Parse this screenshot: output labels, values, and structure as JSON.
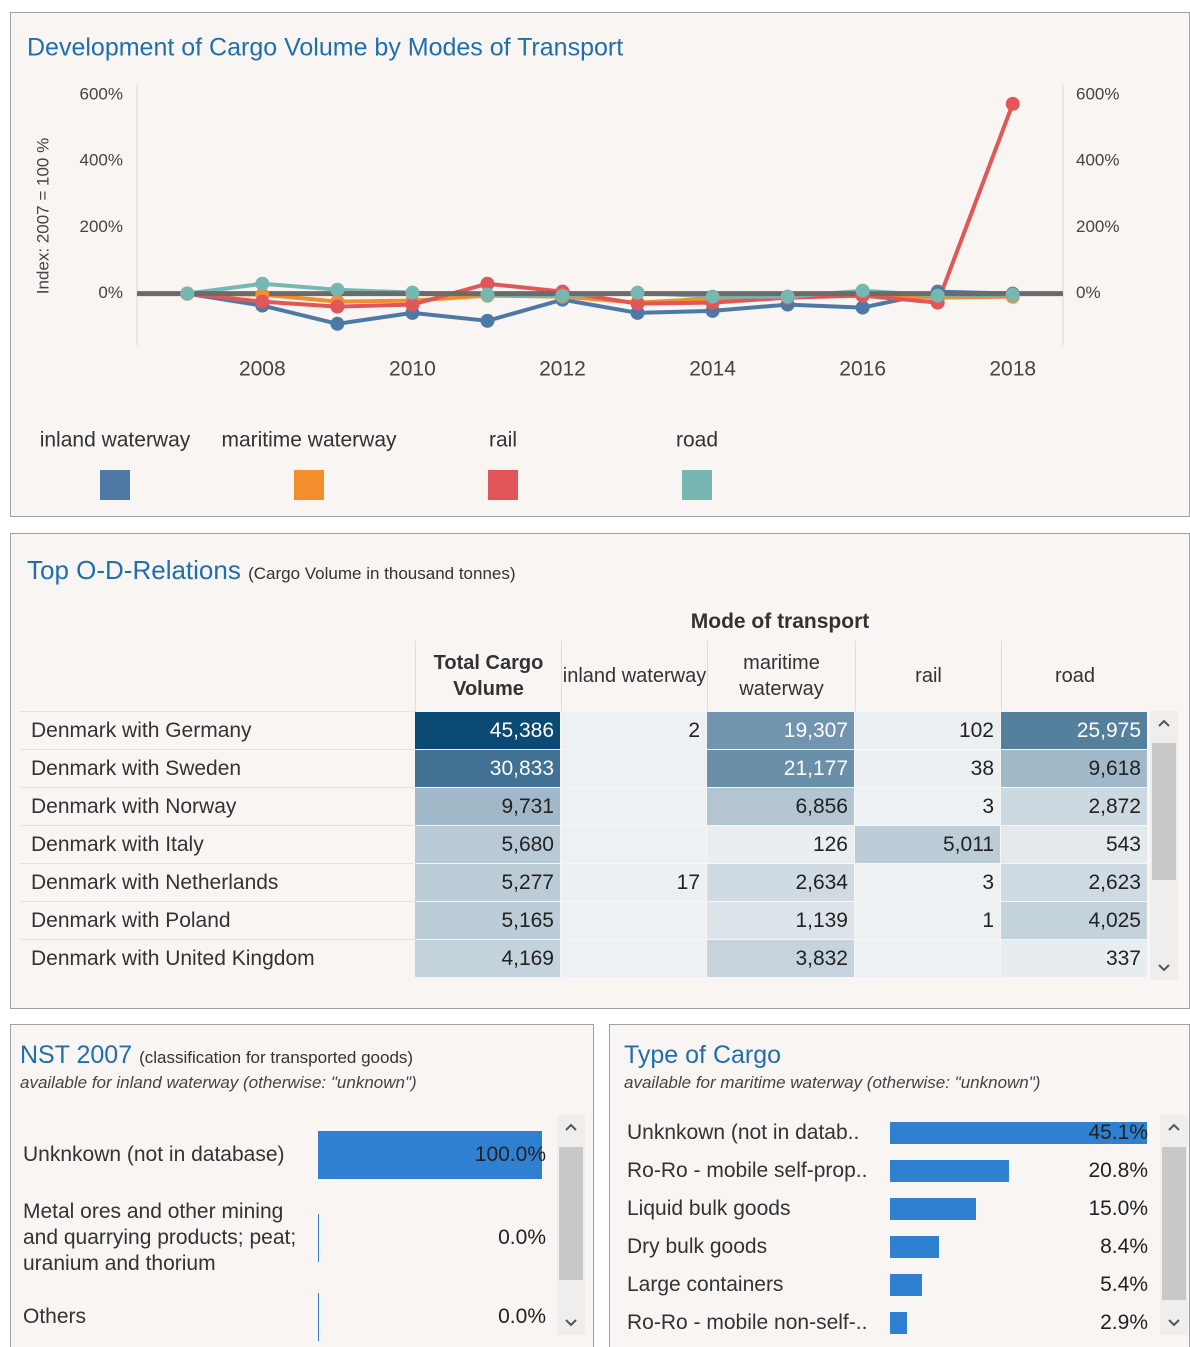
{
  "chart_data": [
    {
      "type": "line",
      "title": "Development of Cargo Volume by Modes of Transport",
      "y_label": "Index: 2007 = 100 %",
      "x": [
        2007,
        2008,
        2009,
        2010,
        2011,
        2012,
        2013,
        2014,
        2015,
        2016,
        2017,
        2018
      ],
      "xlim": [
        2006.33,
        2018.67
      ],
      "xticks": [
        2008,
        2010,
        2012,
        2014,
        2016,
        2018
      ],
      "ylim": [
        -155,
        630
      ],
      "yticks": [
        {
          "value": 0,
          "label": "0%"
        },
        {
          "value": 200,
          "label": "200%"
        },
        {
          "value": 400,
          "label": "400%"
        },
        {
          "value": 600,
          "label": "600%"
        }
      ],
      "y2lim": [
        -155,
        630
      ],
      "y2ticks": [
        {
          "value": 0,
          "label": "0%"
        },
        {
          "value": 200,
          "label": "200%"
        },
        {
          "value": 400,
          "label": "400%"
        },
        {
          "value": 600,
          "label": "600%"
        }
      ],
      "reference_line": 0,
      "grid": false,
      "legend": "bottom",
      "series": [
        {
          "name": "inland waterway",
          "color": "#4e79a7",
          "values": [
            0,
            -36,
            -91,
            -58,
            -82,
            -18,
            -58,
            -52,
            -33,
            -42,
            6,
            0
          ]
        },
        {
          "name": "maritime waterway",
          "color": "#f28e2b",
          "values": [
            0,
            -3,
            -24,
            -21,
            -6,
            -9,
            -27,
            -15,
            -9,
            -6,
            -12,
            -9
          ]
        },
        {
          "name": "rail",
          "color": "#e15759",
          "values": [
            0,
            -24,
            -39,
            -33,
            30,
            6,
            -30,
            -27,
            -12,
            -6,
            -27,
            573
          ]
        },
        {
          "name": "road",
          "color": "#76b7b2",
          "values": [
            0,
            30,
            12,
            3,
            -3,
            -6,
            3,
            -9,
            -9,
            9,
            -6,
            -3
          ]
        }
      ]
    },
    {
      "type": "hbar",
      "title": "NST 2007",
      "subtitle": "(classification for transported goods)",
      "note": "available for inland waterway (otherwise: \"unknown\")",
      "categories": [
        "Unknkown (not in database)",
        "Metal ores and other mining and quarrying products; peat; uranium and thorium",
        "Others"
      ],
      "values": [
        100,
        0,
        0
      ],
      "value_labels": [
        "100.0%",
        "0.0%",
        "0.0%"
      ],
      "xlim": [
        0,
        100
      ],
      "color": "#2f80d1"
    },
    {
      "type": "hbar",
      "title": "Type of Cargo",
      "note": "available for maritime waterway (otherwise: \"unknown\")",
      "categories": [
        "Unknkown (not in datab..",
        "Ro-Ro - mobile self-prop..",
        "Liquid bulk goods",
        "Dry bulk goods",
        "Large containers",
        "Ro-Ro - mobile non-self-.."
      ],
      "values": [
        45.1,
        20.8,
        15.0,
        8.4,
        5.4,
        2.9
      ],
      "value_labels": [
        "45.1%",
        "20.8%",
        "15.0%",
        "8.4%",
        "5.4%",
        "2.9%"
      ],
      "xlim": [
        0,
        45.5
      ],
      "color": "#2f80d1"
    }
  ],
  "table": {
    "title": "Top O-D-Relations",
    "subtitle": "(Cargo Volume in thousand tonnes)",
    "group_header": "Mode of transport",
    "columns": [
      "Total Cargo Volume",
      "inland waterway",
      "maritime waterway",
      "rail",
      "road"
    ],
    "rows": [
      {
        "label": "Denmark with Germany",
        "values": [
          45386,
          2,
          19307,
          102,
          25975
        ],
        "value_labels": [
          "45,386",
          "2",
          "19,307",
          "102",
          "25,975"
        ]
      },
      {
        "label": "Denmark with Sweden",
        "values": [
          30833,
          null,
          21177,
          38,
          9618
        ],
        "value_labels": [
          "30,833",
          null,
          "21,177",
          "38",
          "9,618"
        ]
      },
      {
        "label": "Denmark with Norway",
        "values": [
          9731,
          null,
          6856,
          3,
          2872
        ],
        "value_labels": [
          "9,731",
          null,
          "6,856",
          "3",
          "2,872"
        ]
      },
      {
        "label": "Denmark with Italy",
        "values": [
          5680,
          null,
          126,
          5011,
          543
        ],
        "value_labels": [
          "5,680",
          null,
          "126",
          "5,011",
          "543"
        ]
      },
      {
        "label": "Denmark with Netherlands",
        "values": [
          5277,
          17,
          2634,
          3,
          2623
        ],
        "value_labels": [
          "5,277",
          "17",
          "2,634",
          "3",
          "2,623"
        ]
      },
      {
        "label": "Denmark with Poland",
        "values": [
          5165,
          null,
          1139,
          1,
          4025
        ],
        "value_labels": [
          "5,165",
          null,
          "1,139",
          "1",
          "4,025"
        ]
      },
      {
        "label": "Denmark with United Kingdom",
        "values": [
          4169,
          null,
          3832,
          null,
          337
        ],
        "value_labels": [
          "4,169",
          null,
          "3,832",
          null,
          "337"
        ]
      }
    ]
  }
}
